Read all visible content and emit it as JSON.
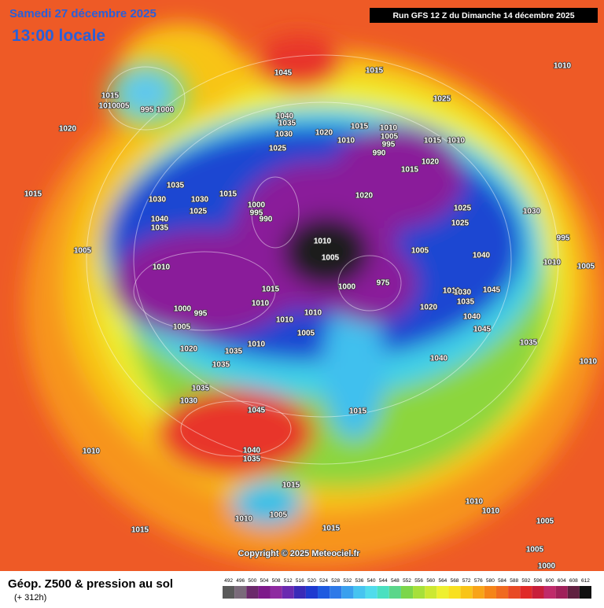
{
  "header": {
    "date": "Samedi 27 décembre 2025",
    "time": "13:00 locale",
    "run": "Run GFS 12 Z du Dimanche 14 décembre 2025"
  },
  "map": {
    "pressure_labels": [
      1015,
      1010005,
      995,
      1000,
      1020,
      1015,
      1045,
      1015,
      1010,
      1025,
      1040,
      1035,
      1030,
      1020,
      1015,
      1010,
      1010,
      1005,
      995,
      990,
      1015,
      1010,
      1025,
      1020,
      1015,
      1035,
      1030,
      1030,
      1025,
      1015,
      1020,
      1025,
      1030,
      1025,
      1040,
      1035,
      1000,
      995,
      990,
      1005,
      1010,
      1005,
      1040,
      995,
      1010,
      1005,
      1010,
      1000,
      975,
      1015,
      1010,
      1030,
      1045,
      1035,
      1020,
      1010,
      1040,
      1010,
      1005,
      1045,
      1010,
      1005,
      1000,
      995,
      1010,
      1035,
      1020,
      1035,
      1040,
      1035,
      1010,
      1035,
      1030,
      1045,
      1015,
      1040,
      1035,
      1010,
      1015,
      1010,
      1005,
      1010,
      1010,
      1005,
      1015,
      1015,
      1005,
      1000,
      1005
    ]
  },
  "copyright": "Copyright © 2025 Meteociel.fr",
  "legend": {
    "title": "Géop. Z500 & pression au sol",
    "lead": "(+ 312h)",
    "scale": [
      492,
      496,
      500,
      504,
      508,
      512,
      516,
      520,
      524,
      528,
      532,
      536,
      540,
      544,
      548,
      552,
      556,
      560,
      564,
      568,
      572,
      576,
      580,
      584,
      588,
      592,
      596,
      600,
      604,
      608,
      612
    ],
    "colors": [
      "#5a5a5a",
      "#7a6a7a",
      "#6b2a6b",
      "#7d1a8a",
      "#8e2aa0",
      "#6a2ab0",
      "#3a2ab8",
      "#1e3ad0",
      "#1e5ae0",
      "#2e7ae8",
      "#3aa0ee",
      "#46c4f0",
      "#50dcec",
      "#4ae0c0",
      "#5ad68a",
      "#7cd64a",
      "#a6e03a",
      "#cce832",
      "#eef030",
      "#f8e020",
      "#f8c418",
      "#f8a418",
      "#f58418",
      "#f06a20",
      "#e84a24",
      "#e02a28",
      "#c81e3a",
      "#c02a6a",
      "#a0205a",
      "#602040",
      "#101010"
    ]
  }
}
